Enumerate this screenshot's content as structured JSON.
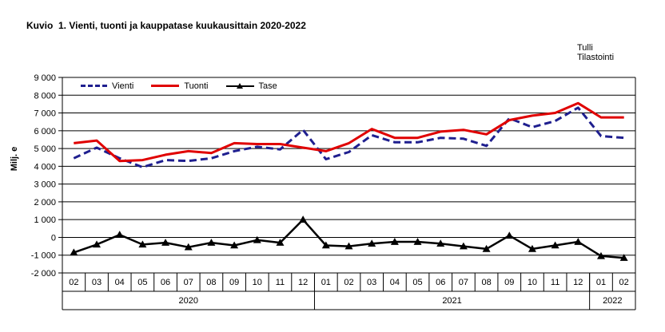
{
  "title": "Kuvio  1. Vienti, tuonti ja kauppatase kuukausittain 2020-2022",
  "source": {
    "line1": "Tulli",
    "line2": "Tilastointi"
  },
  "y_axis": {
    "title": "Milj. e",
    "tick_labels": [
      "9 000",
      "8 000",
      "7 000",
      "6 000",
      "5 000",
      "4 000",
      "3 000",
      "2 000",
      "1 000",
      "0",
      "-1 000",
      "-2 000"
    ],
    "max": 9000,
    "min": -2000,
    "step": 1000
  },
  "legend": [
    {
      "label": "Vienti",
      "color": "#1f1f8f",
      "style": "dashed"
    },
    {
      "label": "Tuonti",
      "color": "#e00000",
      "style": "solid"
    },
    {
      "label": "Tase",
      "color": "#000000",
      "style": "solid-triangle-marker"
    }
  ],
  "chart_data": {
    "type": "line",
    "title": "Kuvio  1. Vienti, tuonti ja kauppatase kuukausittain 2020-2022",
    "ylabel": "Milj. e",
    "ylim": [
      -2000,
      9000
    ],
    "y_step": 1000,
    "grid": true,
    "legend_position": "top-left-inside",
    "categories": [
      "02",
      "03",
      "04",
      "05",
      "06",
      "07",
      "08",
      "09",
      "10",
      "11",
      "12",
      "01",
      "02",
      "03",
      "04",
      "05",
      "06",
      "07",
      "08",
      "09",
      "10",
      "11",
      "12",
      "01",
      "02"
    ],
    "year_groups": [
      {
        "label": "2020",
        "start": 0,
        "count": 11
      },
      {
        "label": "2021",
        "start": 11,
        "count": 12
      },
      {
        "label": "2022",
        "start": 23,
        "count": 2
      }
    ],
    "series": [
      {
        "name": "Vienti",
        "color": "#1f1f8f",
        "dash": true,
        "marker": "none",
        "values": [
          4450,
          5050,
          4450,
          3950,
          4350,
          4300,
          4450,
          4850,
          5100,
          4950,
          6050,
          4400,
          4800,
          5750,
          5350,
          5350,
          5600,
          5550,
          5150,
          6700,
          6200,
          6550,
          7300,
          5700,
          5600
        ]
      },
      {
        "name": "Tuonti",
        "color": "#e00000",
        "dash": false,
        "marker": "none",
        "values": [
          5300,
          5450,
          4300,
          4350,
          4650,
          4850,
          4750,
          5300,
          5250,
          5250,
          5050,
          4850,
          5300,
          6100,
          5600,
          5600,
          5950,
          6050,
          5800,
          6600,
          6850,
          7000,
          7550,
          6750,
          6750
        ]
      },
      {
        "name": "Tase",
        "color": "#000000",
        "dash": false,
        "marker": "triangle",
        "values": [
          -850,
          -400,
          150,
          -400,
          -300,
          -550,
          -300,
          -450,
          -150,
          -300,
          1000,
          -450,
          -500,
          -350,
          -250,
          -250,
          -350,
          -500,
          -650,
          100,
          -650,
          -450,
          -250,
          -1050,
          -1150
        ]
      }
    ]
  }
}
